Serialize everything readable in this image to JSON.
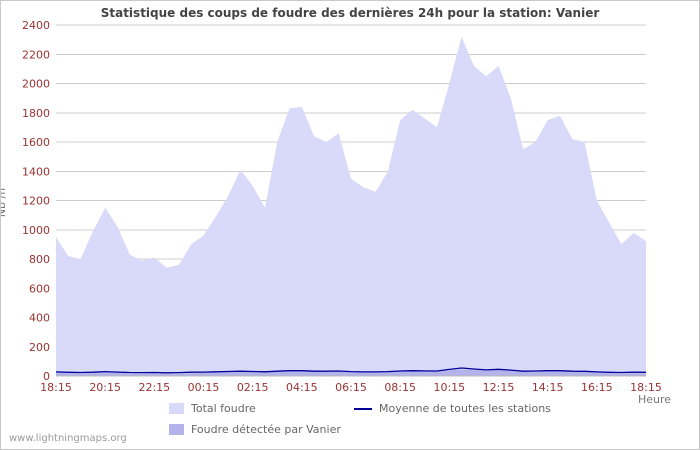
{
  "watermark": "www.lightningmaps.org",
  "chart_data": {
    "type": "area",
    "title": "Statistique des coups de foudre des dernières 24h pour la station: Vanier",
    "xlabel": "Heure",
    "ylabel": "Nb /h",
    "ylim": [
      0,
      2400
    ],
    "ytick_step": 200,
    "grid": "horizontal",
    "legend_position": "bottom",
    "x_tick_labels": [
      "18:15",
      "20:15",
      "22:15",
      "00:15",
      "02:15",
      "04:15",
      "06:15",
      "08:15",
      "10:15",
      "12:15",
      "14:15",
      "16:15",
      "18:15"
    ],
    "sample_interval_minutes": 30,
    "series": [
      {
        "name": "Total foudre",
        "type": "area",
        "color": "#d9d9f9",
        "values": [
          950,
          820,
          800,
          990,
          1150,
          1020,
          830,
          790,
          810,
          740,
          760,
          900,
          960,
          1090,
          1230,
          1410,
          1300,
          1150,
          1600,
          1830,
          1840,
          1640,
          1600,
          1660,
          1350,
          1290,
          1260,
          1400,
          1750,
          1820,
          1760,
          1700,
          2000,
          2320,
          2120,
          2050,
          2120,
          1900,
          1550,
          1600,
          1750,
          1780,
          1620,
          1600,
          1200,
          1050,
          900,
          980,
          920
        ]
      },
      {
        "name": "Foudre détectée par Vanier",
        "type": "area",
        "color": "#b3b3ea",
        "values": [
          25,
          20,
          18,
          22,
          28,
          24,
          18,
          16,
          18,
          15,
          16,
          20,
          22,
          25,
          28,
          30,
          28,
          24,
          30,
          35,
          35,
          30,
          30,
          32,
          26,
          24,
          24,
          27,
          33,
          35,
          34,
          32,
          40,
          45,
          42,
          40,
          42,
          38,
          30,
          32,
          34,
          35,
          31,
          30,
          24,
          20,
          18,
          20,
          18
        ]
      },
      {
        "name": "Moyenne de toutes les stations",
        "type": "line",
        "color": "#000099",
        "values": [
          28,
          25,
          24,
          26,
          30,
          27,
          24,
          23,
          24,
          22,
          23,
          26,
          27,
          29,
          31,
          33,
          31,
          29,
          33,
          36,
          36,
          33,
          33,
          34,
          30,
          28,
          28,
          30,
          34,
          36,
          35,
          34,
          45,
          55,
          48,
          42,
          46,
          40,
          33,
          34,
          36,
          36,
          33,
          32,
          28,
          25,
          24,
          26,
          25
        ]
      }
    ]
  }
}
